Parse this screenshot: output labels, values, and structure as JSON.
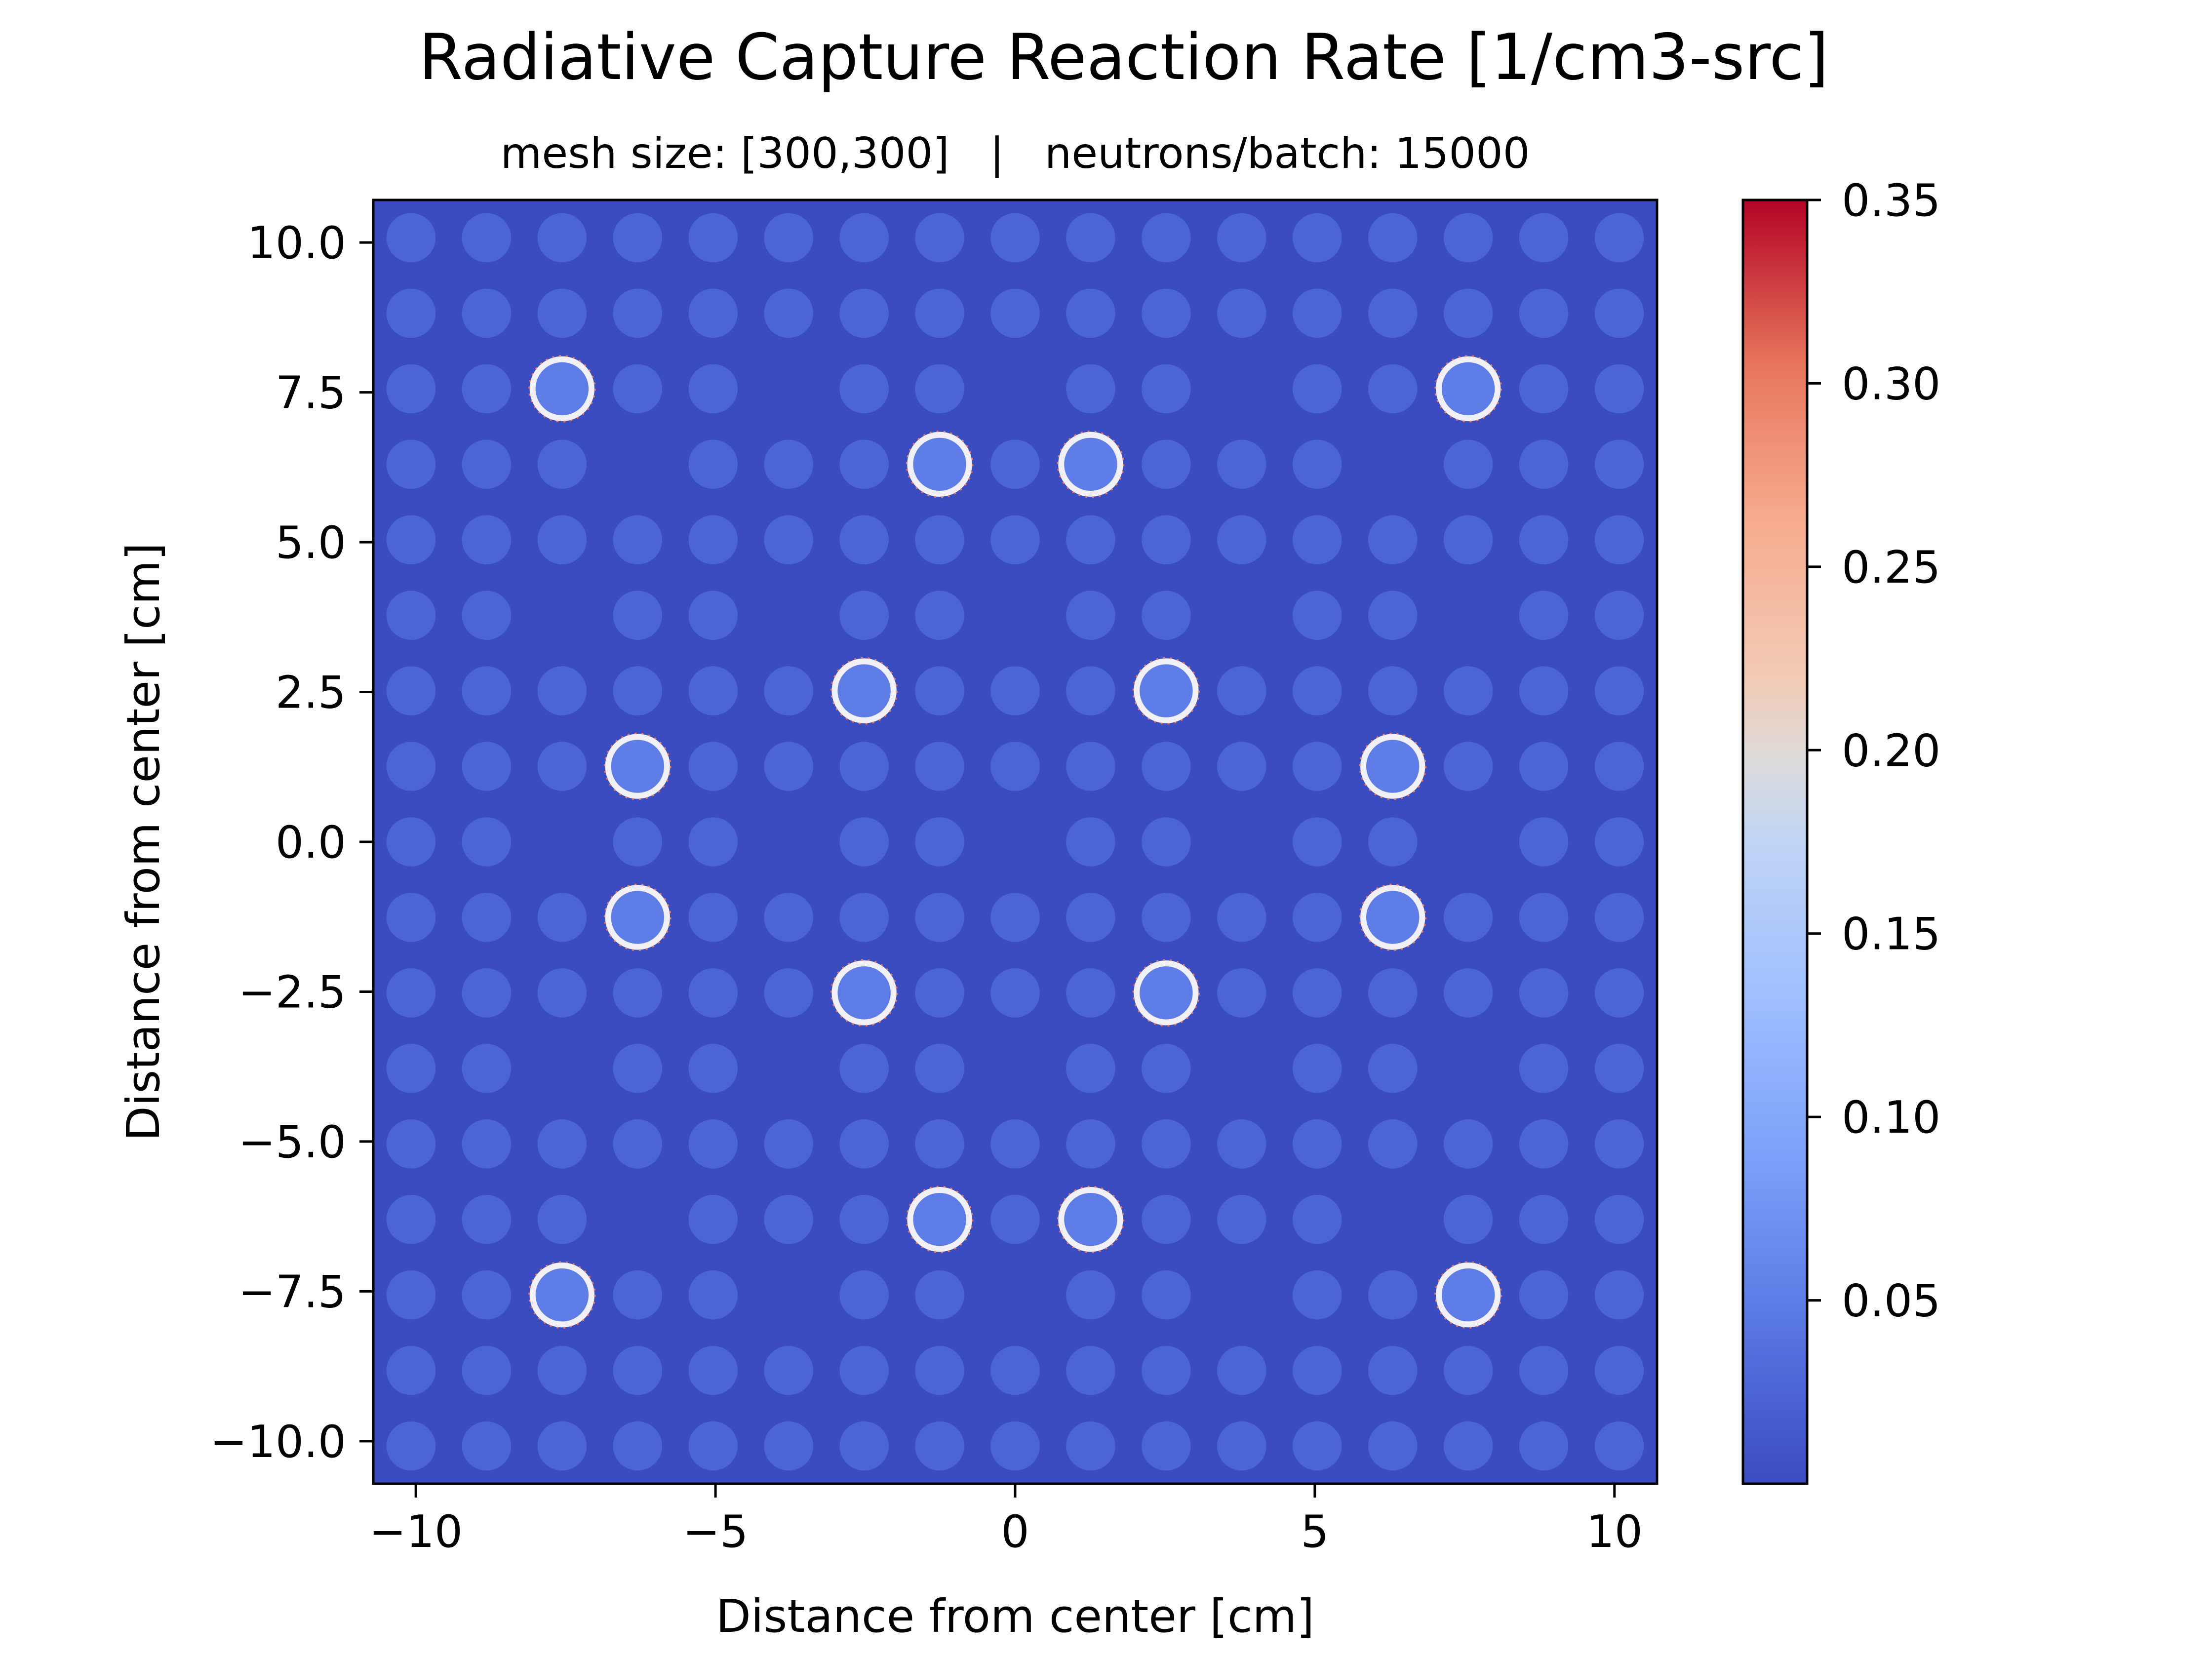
{
  "chart_data": {
    "type": "heatmap",
    "title": "Radiative Capture Reaction Rate [1/cm3-src]",
    "subtitle": "mesh size: [300,300]   |   neutrons/batch: 15000",
    "xlabel": "Distance from center [cm]",
    "ylabel": "Distance from center [cm]",
    "xlim": [
      -10.71,
      10.71
    ],
    "ylim": [
      -10.71,
      10.71
    ],
    "xticks": [
      -10,
      -5,
      0,
      5,
      10
    ],
    "xtick_labels": [
      "−10",
      "−5",
      "0",
      "5",
      "10"
    ],
    "yticks": [
      10.0,
      7.5,
      5.0,
      2.5,
      0.0,
      -2.5,
      -5.0,
      -7.5,
      -10.0
    ],
    "ytick_labels": [
      "10.0",
      "7.5",
      "5.0",
      "2.5",
      "0.0",
      "−2.5",
      "−5.0",
      "−7.5",
      "−10.0"
    ],
    "colorbar": {
      "min": 0.0,
      "max": 0.35,
      "ticks": [
        0.05,
        0.1,
        0.15,
        0.2,
        0.25,
        0.3,
        0.35
      ],
      "tick_labels": [
        "0.05",
        "0.10",
        "0.15",
        "0.20",
        "0.25",
        "0.30",
        "0.35"
      ],
      "colormap": "coolwarm"
    },
    "background_value": 0.0,
    "lattice": {
      "pitch": 1.26,
      "size": 17,
      "pin_radius": 0.41,
      "fuel_pin_value": 0.025,
      "empty_positions": [
        [
          2,
          5
        ],
        [
          2,
          8
        ],
        [
          2,
          11
        ],
        [
          3,
          3
        ],
        [
          3,
          13
        ],
        [
          5,
          2
        ],
        [
          5,
          5
        ],
        [
          5,
          8
        ],
        [
          5,
          11
        ],
        [
          5,
          14
        ],
        [
          8,
          2
        ],
        [
          8,
          5
        ],
        [
          8,
          8
        ],
        [
          8,
          11
        ],
        [
          8,
          14
        ],
        [
          11,
          2
        ],
        [
          11,
          5
        ],
        [
          11,
          8
        ],
        [
          11,
          11
        ],
        [
          11,
          14
        ],
        [
          13,
          3
        ],
        [
          13,
          13
        ],
        [
          14,
          5
        ],
        [
          14,
          8
        ],
        [
          14,
          11
        ]
      ]
    },
    "hot_pins": [
      {
        "x": -7.56,
        "y": 7.56,
        "value": 0.05
      },
      {
        "x": 7.56,
        "y": 7.56,
        "value": 0.05
      },
      {
        "x": -1.26,
        "y": 6.3,
        "value": 0.05
      },
      {
        "x": 1.26,
        "y": 6.3,
        "value": 0.05
      },
      {
        "x": -2.52,
        "y": 2.52,
        "value": 0.05
      },
      {
        "x": 2.52,
        "y": 2.52,
        "value": 0.05
      },
      {
        "x": -6.3,
        "y": 1.26,
        "value": 0.05
      },
      {
        "x": 6.3,
        "y": 1.26,
        "value": 0.05
      },
      {
        "x": -6.3,
        "y": -1.26,
        "value": 0.05
      },
      {
        "x": 6.3,
        "y": -1.26,
        "value": 0.05
      },
      {
        "x": -2.52,
        "y": -2.52,
        "value": 0.05
      },
      {
        "x": 2.52,
        "y": -2.52,
        "value": 0.05
      },
      {
        "x": -1.26,
        "y": -6.3,
        "value": 0.05
      },
      {
        "x": 1.26,
        "y": -6.3,
        "value": 0.05
      },
      {
        "x": -7.56,
        "y": -7.56,
        "value": 0.05
      },
      {
        "x": 7.56,
        "y": -7.56,
        "value": 0.05
      }
    ],
    "hot_pin_edge_value": 0.3
  }
}
